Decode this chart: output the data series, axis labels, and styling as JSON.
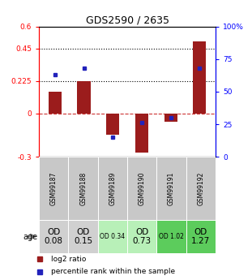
{
  "title": "GDS2590 / 2635",
  "samples": [
    "GSM99187",
    "GSM99188",
    "GSM99189",
    "GSM99190",
    "GSM99191",
    "GSM99192"
  ],
  "log2_ratio": [
    0.15,
    0.225,
    -0.15,
    -0.27,
    -0.06,
    0.5
  ],
  "percentile_rank": [
    63,
    68,
    15,
    26,
    30,
    68
  ],
  "bar_color": "#9B1C1C",
  "dot_color": "#2222BB",
  "ylim_left": [
    -0.3,
    0.6
  ],
  "ylim_right": [
    0,
    100
  ],
  "yticks_left": [
    -0.3,
    0,
    0.225,
    0.45,
    0.6
  ],
  "ytick_labels_left": [
    "-0.3",
    "0",
    "0.225",
    "0.45",
    "0.6"
  ],
  "yticks_right": [
    0,
    25,
    50,
    75,
    100
  ],
  "ytick_labels_right": [
    "0",
    "25",
    "50",
    "75",
    "100%"
  ],
  "hlines_dotted": [
    0.225,
    0.45
  ],
  "hline_zero_color": "#cc3333",
  "annotation_row": [
    "OD\n0.08",
    "OD\n0.15",
    "OD 0.34",
    "OD\n0.73",
    "OD 1.02",
    "OD\n1.27"
  ],
  "annotation_large": [
    true,
    true,
    false,
    true,
    false,
    true
  ],
  "annotation_bg": [
    "#d0d0d0",
    "#d0d0d0",
    "#b8f0b8",
    "#b8f0b8",
    "#5ccc5c",
    "#5ccc5c"
  ],
  "sample_bg": "#c8c8c8",
  "age_label": "age",
  "legend_bar": "log2 ratio",
  "legend_dot": "percentile rank within the sample",
  "bar_width": 0.45
}
